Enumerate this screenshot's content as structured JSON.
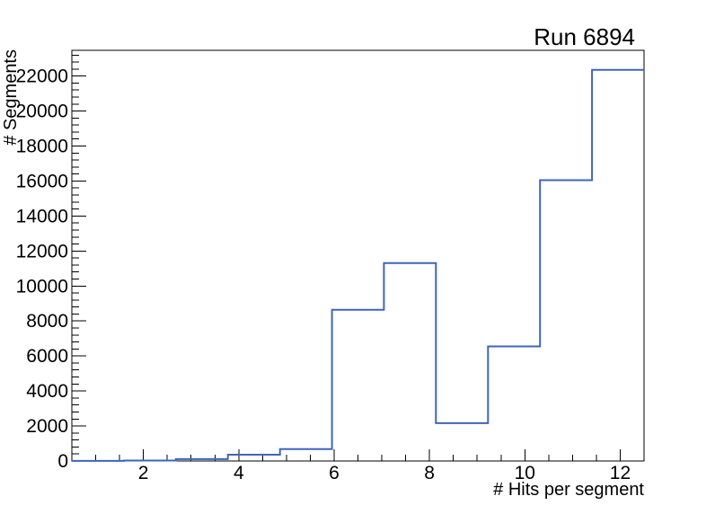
{
  "window": {
    "background": "#ffffff"
  },
  "colors": {
    "line": "#3f65bb",
    "axis": "#000000",
    "text": "#000000",
    "background": "#ffffff"
  },
  "chart_data": {
    "type": "bar",
    "style": "step-histogram",
    "title": "Run 6894",
    "xlabel": "# Hits per segment",
    "ylabel": "# Segments",
    "xlim": [
      0.5,
      12.5
    ],
    "ylim": [
      0,
      23470
    ],
    "bin_edges": [
      0.5,
      1.591,
      2.682,
      3.773,
      4.864,
      5.955,
      7.045,
      8.136,
      9.227,
      10.318,
      11.409,
      12.5
    ],
    "values": [
      5,
      25,
      110,
      360,
      680,
      8640,
      11310,
      2160,
      6550,
      16050,
      22350
    ],
    "x_major_ticks": [
      2,
      4,
      6,
      8,
      10,
      12
    ],
    "x_tick_labels": [
      "2",
      "4",
      "6",
      "8",
      "10",
      "12"
    ],
    "x_minor_step": 0.5,
    "y_major_step": 2000,
    "y_tick_labels": [
      "0",
      "2000",
      "4000",
      "6000",
      "8000",
      "10000",
      "12000",
      "14000",
      "16000",
      "18000",
      "20000",
      "22000"
    ],
    "y_minor_step": 400,
    "grid": false,
    "legend": null,
    "line_color": "#3f65bb"
  }
}
